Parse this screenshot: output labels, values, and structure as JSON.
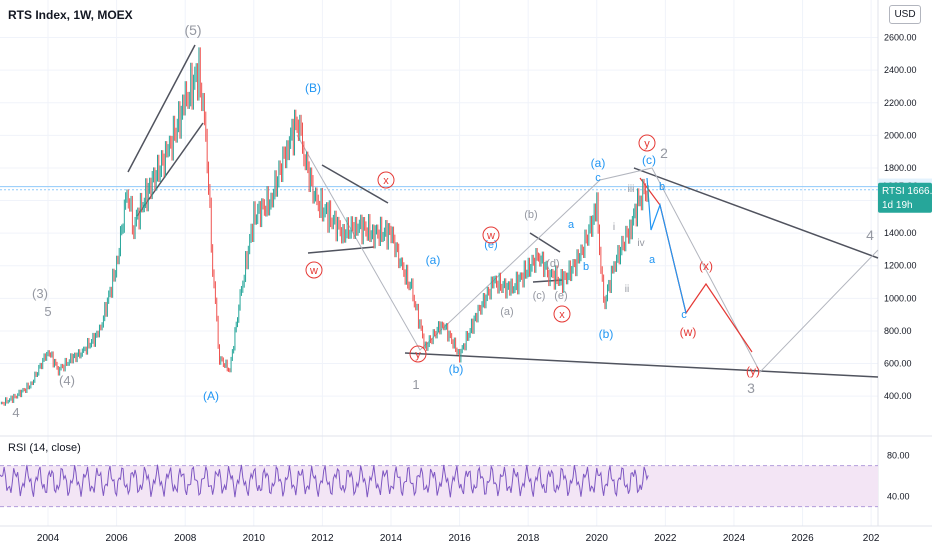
{
  "header": {
    "title": "RTS Index, 1W, MOEX",
    "currency": "USD"
  },
  "rsi_title": "RSI (14, close)",
  "chart_data": [
    {
      "type": "line",
      "title": "RTS Index, 1W, MOEX",
      "x_ticks": [
        "2004",
        "2006",
        "2008",
        "2010",
        "2012",
        "2014",
        "2016",
        "2018",
        "2020",
        "2022",
        "2024",
        "2026",
        "202"
      ],
      "y_ticks": [
        "400.00",
        "600.00",
        "800.00",
        "1000.00",
        "1200.00",
        "1400.00",
        "1600.00",
        "1800.00",
        "2000.00",
        "2200.00",
        "2400.00",
        "2600.00"
      ],
      "ylim": [
        180,
        2720
      ],
      "xlim": [
        2002.6,
        2028.2
      ],
      "series": [
        {
          "x": [
            2002.6,
            2003.0,
            2003.5,
            2004.0,
            2004.3,
            2004.7,
            2005.0,
            2005.5,
            2006.0,
            2006.3,
            2006.5,
            2007.0,
            2007.5,
            2008.0,
            2008.4,
            2008.6,
            2008.8,
            2009.0,
            2009.3,
            2009.6,
            2010.0,
            2010.5,
            2011.0,
            2011.3,
            2011.5,
            2011.8,
            2012.2,
            2012.6,
            2013.0,
            2013.5,
            2014.0,
            2014.3,
            2014.6,
            2015.0,
            2015.5,
            2016.0,
            2016.5,
            2017.0,
            2017.5,
            2018.0,
            2018.3,
            2018.6,
            2019.0,
            2019.5,
            2020.0,
            2020.2,
            2020.5,
            2021.0,
            2021.3,
            2021.5
          ],
          "values": [
            350,
            390,
            470,
            680,
            560,
            630,
            670,
            790,
            1200,
            1650,
            1450,
            1700,
            1900,
            2200,
            2400,
            2000,
            1200,
            630,
            560,
            1000,
            1500,
            1600,
            1950,
            2100,
            1850,
            1600,
            1500,
            1400,
            1450,
            1400,
            1400,
            1200,
            1050,
            700,
            850,
            650,
            900,
            1100,
            1050,
            1180,
            1260,
            1150,
            1100,
            1250,
            1550,
            950,
            1200,
            1450,
            1650,
            1660
          ]
        },
        {
          "name": "RTSI",
          "markers": [
            {
              "label": "RTSI",
              "value": "1666.21"
            },
            {
              "label": "",
              "value": "1685.80"
            }
          ],
          "countdown": "1d 19h"
        }
      ],
      "annotations": [
        "(5)",
        "(B)",
        "x",
        "y",
        "(a)",
        "(c)",
        "2",
        "w",
        "(b)",
        "(d)",
        "(e)",
        "(c)",
        "a",
        "b",
        "c",
        "i",
        "ii",
        "iii",
        "iv",
        "(A)",
        "(3)",
        "5",
        "(4)",
        "4",
        "w",
        "1",
        "(a)",
        "(b)",
        "(x)",
        "(w)",
        "(y)",
        "3",
        "4",
        "a",
        "b",
        "c",
        "x",
        "(b)",
        "(e)"
      ]
    },
    {
      "type": "line",
      "title": "RSI (14, close)",
      "y_ticks": [
        "40.00",
        "80.00"
      ],
      "ylim": [
        15,
        95
      ],
      "band": [
        30,
        70
      ]
    }
  ],
  "colors": {
    "price": "#131722",
    "up": "#26a69a",
    "down": "#ef5350",
    "wave_blue": "#2196f3",
    "wave_red": "#e53935",
    "wave_gray": "#9598a1",
    "line": "#50535e",
    "rsi": "#7e57c2",
    "band": "#f3e5f5",
    "hline": "#90caf9",
    "badge": "#26a69a"
  }
}
